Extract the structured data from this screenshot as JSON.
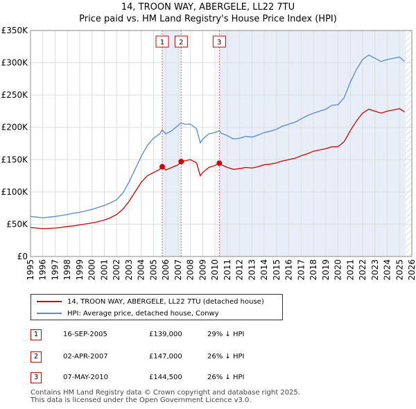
{
  "title_line1": "14, TROON WAY, ABERGELE, LL22 7TU",
  "title_line2": "Price paid vs. HM Land Registry's House Price Index (HPI)",
  "colors": {
    "property": "#cc0000",
    "hpi": "#5588cc",
    "shade": "#e8eef8",
    "marker": "#cc0000"
  },
  "chart_data": {
    "type": "line",
    "title": "Price paid vs. HM Land Registry's House Price Index (HPI)",
    "xlabel": "",
    "ylabel": "",
    "xlim": [
      1995,
      2026
    ],
    "ylim": [
      0,
      350000
    ],
    "y_ticks": [
      0,
      50000,
      100000,
      150000,
      200000,
      250000,
      300000,
      350000
    ],
    "y_tick_labels": [
      "£0",
      "£50K",
      "£100K",
      "£150K",
      "£200K",
      "£250K",
      "£300K",
      "£350K"
    ],
    "x_ticks": [
      1995,
      1996,
      1997,
      1998,
      1999,
      2000,
      2001,
      2002,
      2003,
      2004,
      2005,
      2006,
      2007,
      2008,
      2009,
      2010,
      2011,
      2012,
      2013,
      2014,
      2015,
      2016,
      2017,
      2018,
      2019,
      2020,
      2021,
      2022,
      2023,
      2024,
      2025,
      2026
    ],
    "shaded_ranges": [
      [
        2005.71,
        2007.25
      ],
      [
        2010.35,
        2025.5
      ]
    ],
    "sale_markers": [
      {
        "label": "1",
        "x": 2005.71,
        "y": 139000
      },
      {
        "label": "2",
        "x": 2007.25,
        "y": 147000
      },
      {
        "label": "3",
        "x": 2010.35,
        "y": 144500
      }
    ],
    "series": [
      {
        "name": "14, TROON WAY, ABERGELE, LL22 7TU (detached house)",
        "x": [
          1995,
          1995.5,
          1996,
          1996.5,
          1997,
          1997.5,
          1998,
          1998.5,
          1999,
          1999.5,
          2000,
          2000.5,
          2001,
          2001.5,
          2002,
          2002.5,
          2003,
          2003.5,
          2004,
          2004.5,
          2005,
          2005.5,
          2005.71,
          2006,
          2006.5,
          2007,
          2007.25,
          2007.5,
          2008,
          2008.5,
          2008.8,
          2009,
          2009.5,
          2010,
          2010.35,
          2010.5,
          2011,
          2011.5,
          2012,
          2012.5,
          2013,
          2013.5,
          2014,
          2014.5,
          2015,
          2015.5,
          2016,
          2016.5,
          2017,
          2017.5,
          2018,
          2018.5,
          2019,
          2019.5,
          2020,
          2020.5,
          2021,
          2021.5,
          2022,
          2022.5,
          2023,
          2023.5,
          2024,
          2024.5,
          2025,
          2025.4
        ],
        "values": [
          45000,
          44000,
          43000,
          43500,
          44000,
          45000,
          46500,
          47500,
          49000,
          50500,
          52000,
          54000,
          56500,
          60000,
          65000,
          73000,
          85000,
          100000,
          115000,
          125000,
          130000,
          135000,
          139000,
          134000,
          138000,
          142000,
          147000,
          148000,
          150000,
          145000,
          125000,
          130000,
          138000,
          141000,
          144500,
          142000,
          138000,
          135000,
          136000,
          138000,
          137000,
          139000,
          142000,
          143000,
          145000,
          148000,
          150000,
          152000,
          156000,
          159000,
          163000,
          165000,
          167000,
          170000,
          170000,
          178000,
          195000,
          210000,
          222000,
          228000,
          225000,
          222000,
          225000,
          227000,
          229000,
          224000
        ]
      },
      {
        "name": "HPI: Average price, detached house, Conwy",
        "x": [
          1995,
          1995.5,
          1996,
          1996.5,
          1997,
          1997.5,
          1998,
          1998.5,
          1999,
          1999.5,
          2000,
          2000.5,
          2001,
          2001.5,
          2002,
          2002.5,
          2003,
          2003.5,
          2004,
          2004.5,
          2005,
          2005.5,
          2005.71,
          2006,
          2006.5,
          2007,
          2007.25,
          2007.5,
          2008,
          2008.5,
          2008.8,
          2009,
          2009.5,
          2010,
          2010.35,
          2010.5,
          2011,
          2011.5,
          2012,
          2012.5,
          2013,
          2013.5,
          2014,
          2014.5,
          2015,
          2015.5,
          2016,
          2016.5,
          2017,
          2017.5,
          2018,
          2018.5,
          2019,
          2019.5,
          2020,
          2020.5,
          2021,
          2021.5,
          2022,
          2022.5,
          2023,
          2023.5,
          2024,
          2024.5,
          2025,
          2025.4
        ],
        "values": [
          62000,
          61000,
          60000,
          61000,
          62000,
          63500,
          65000,
          67000,
          68500,
          70500,
          73000,
          76000,
          79000,
          83000,
          88000,
          98000,
          115000,
          135000,
          155000,
          172000,
          183000,
          190000,
          196000,
          190000,
          195000,
          203000,
          207000,
          205000,
          205000,
          198000,
          176000,
          182000,
          190000,
          192000,
          195000,
          191000,
          187000,
          182000,
          183000,
          186000,
          185000,
          188000,
          192000,
          194000,
          197000,
          202000,
          205000,
          208000,
          213000,
          218000,
          222000,
          225000,
          228000,
          234000,
          235000,
          246000,
          270000,
          290000,
          305000,
          312000,
          307000,
          302000,
          305000,
          307000,
          309000,
          302000
        ]
      }
    ]
  },
  "legend": {
    "property_label": "14, TROON WAY, ABERGELE, LL22 7TU (detached house)",
    "hpi_label": "HPI: Average price, detached house, Conwy"
  },
  "sales": [
    {
      "num": "1",
      "date": "16-SEP-2005",
      "price": "£139,000",
      "hpi": "29% ↓ HPI"
    },
    {
      "num": "2",
      "date": "02-APR-2007",
      "price": "£147,000",
      "hpi": "26% ↓ HPI"
    },
    {
      "num": "3",
      "date": "07-MAY-2010",
      "price": "£144,500",
      "hpi": "26% ↓ HPI"
    }
  ],
  "footer_line1": "Contains HM Land Registry data © Crown copyright and database right 2025.",
  "footer_line2": "This data is licensed under the Open Government Licence v3.0."
}
